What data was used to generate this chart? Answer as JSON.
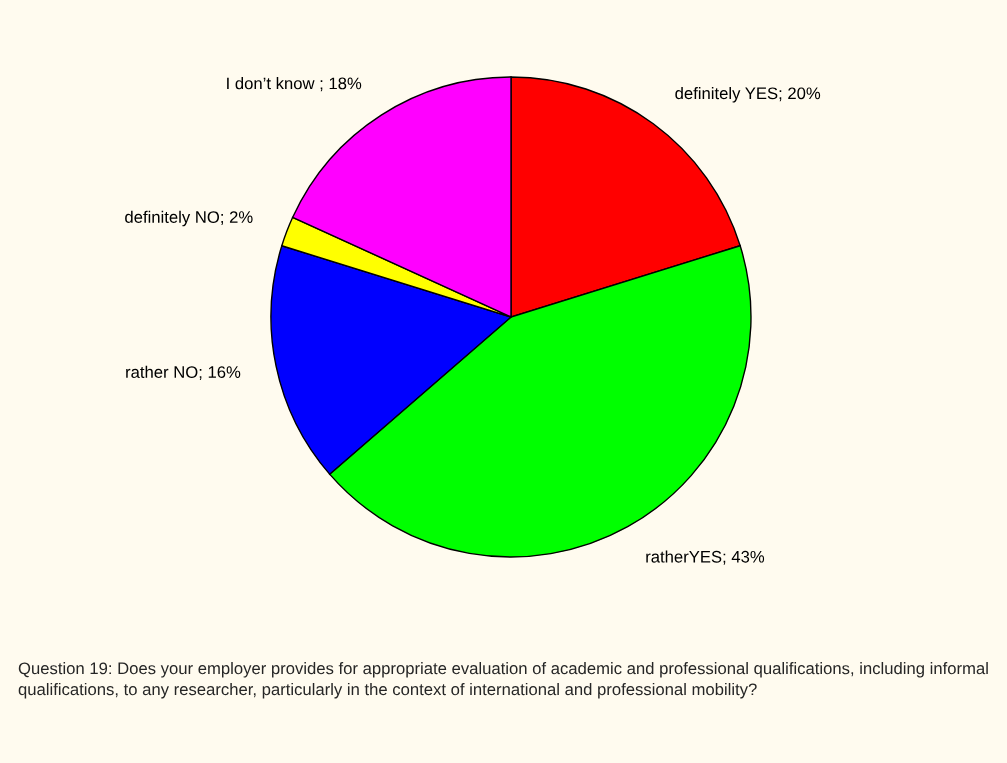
{
  "chart_data": {
    "type": "pie",
    "categories": [
      "definitely YES; 20%",
      "ratherYES; 43%",
      "rather NO; 16%",
      "definitely NO; 2%",
      "I don’t know ; 18%"
    ],
    "values": [
      20,
      43,
      16,
      2,
      18
    ],
    "colors": [
      "#ff0000",
      "#00ff00",
      "#0000ff",
      "#ffff00",
      "#ff00ff"
    ],
    "legend": false,
    "annotations": [
      "Question 19: Does your employer provides for appropriate evaluation of academic and professional qualifications, including informal qualifications, to any researcher, particularly in the context of international and professional mobility?"
    ]
  }
}
